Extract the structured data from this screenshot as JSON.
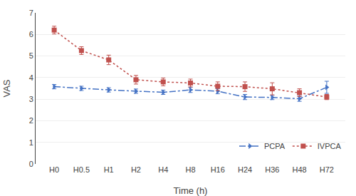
{
  "chart_data": {
    "type": "line",
    "xlabel": "Time (h)",
    "ylabel": "VAS",
    "categories": [
      "H0",
      "H0.5",
      "H1",
      "H2",
      "H4",
      "H8",
      "H16",
      "H24",
      "H36",
      "H48",
      "H72"
    ],
    "series": [
      {
        "name": "PCPA",
        "color": "#4472C4",
        "marker": "triangle-right",
        "line_style": "dashdot",
        "values": [
          3.58,
          3.5,
          3.43,
          3.37,
          3.32,
          3.43,
          3.37,
          3.1,
          3.08,
          3.02,
          3.55
        ],
        "errors": [
          0.1,
          0.1,
          0.1,
          0.1,
          0.1,
          0.12,
          0.12,
          0.12,
          0.1,
          0.12,
          0.28
        ]
      },
      {
        "name": "IVPCA",
        "color": "#C0504D",
        "marker": "square",
        "line_style": "dot",
        "values": [
          6.2,
          5.25,
          4.82,
          3.9,
          3.8,
          3.75,
          3.6,
          3.58,
          3.48,
          3.3,
          3.1
        ],
        "errors": [
          0.18,
          0.18,
          0.22,
          0.2,
          0.18,
          0.18,
          0.2,
          0.22,
          0.28,
          0.18,
          0.12
        ]
      }
    ],
    "ylim": [
      0,
      7
    ],
    "yticks": [
      0,
      1,
      2,
      3,
      4,
      5,
      6,
      7
    ],
    "grid": true,
    "legend": "lower right"
  }
}
